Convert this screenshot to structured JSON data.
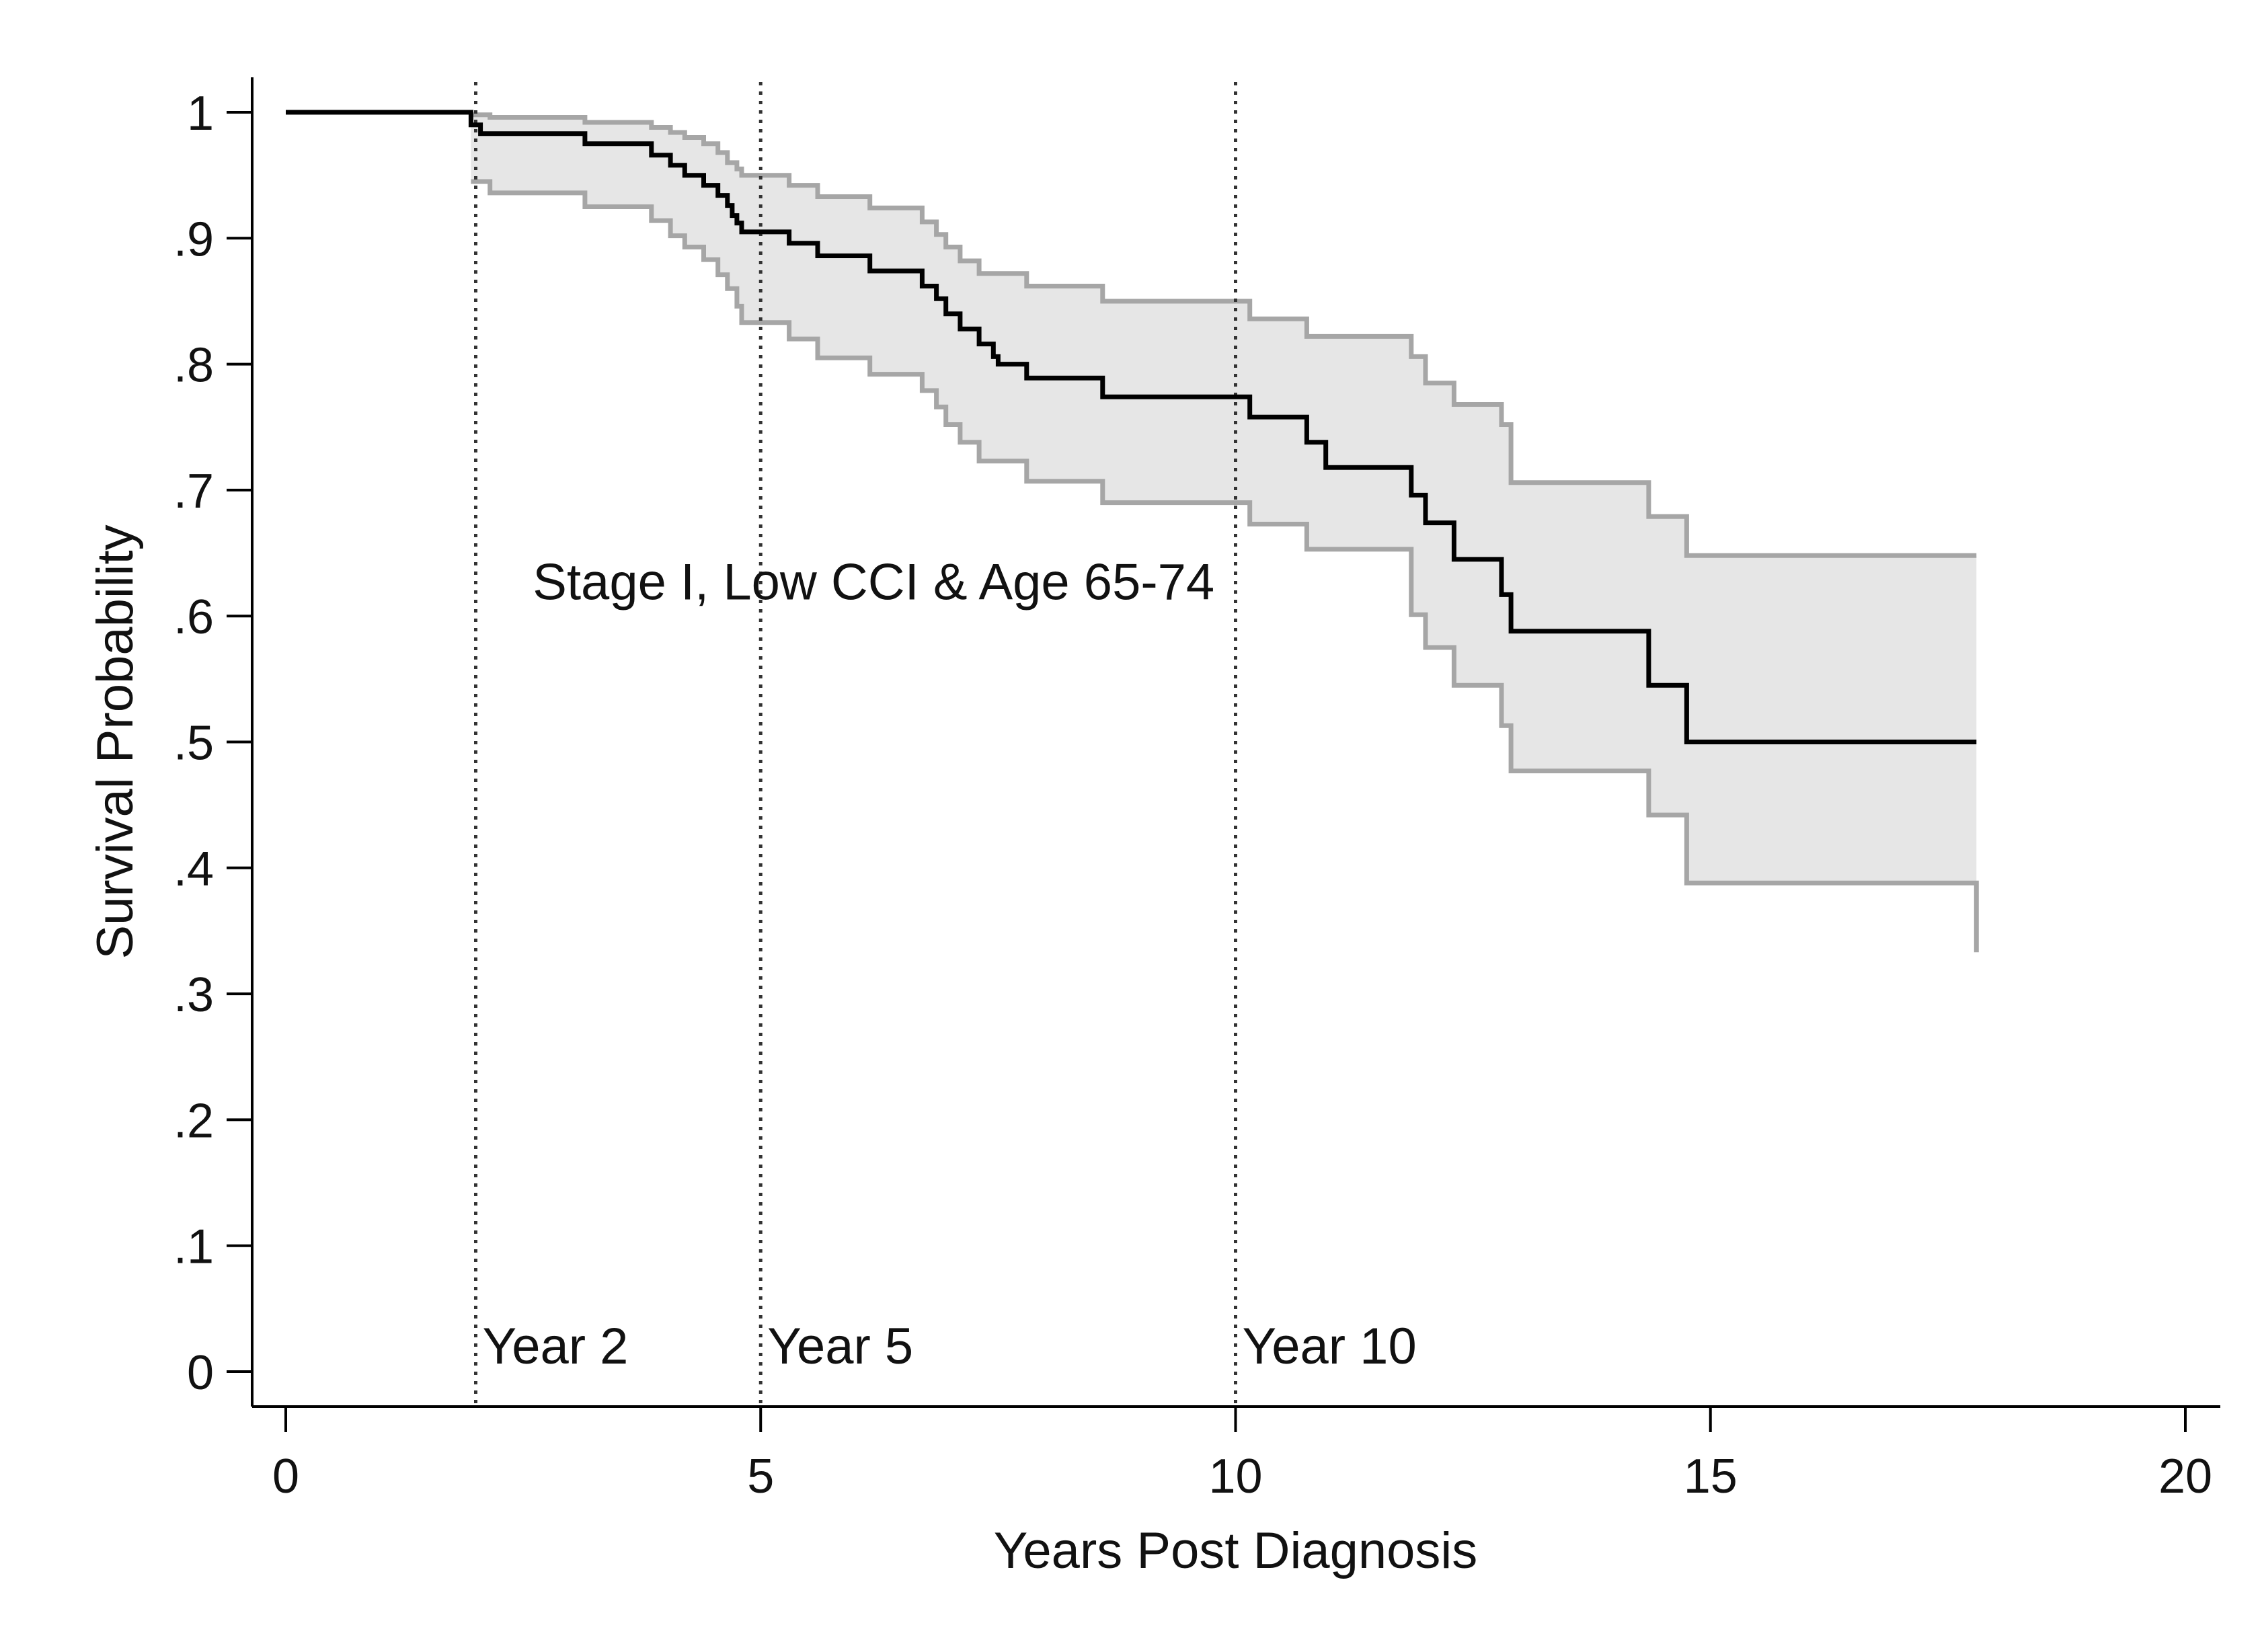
{
  "chart_data": {
    "type": "line",
    "subtype": "kaplan-meier step survival curve with confidence band",
    "title": "",
    "xlabel": "Years Post Diagnosis",
    "ylabel": "Survival Probability",
    "xlim": [
      0,
      20
    ],
    "ylim": [
      0,
      1
    ],
    "x_ticks": [
      0,
      5,
      10,
      15,
      20
    ],
    "x_tick_labels": [
      "0",
      "5",
      "10",
      "15",
      "20"
    ],
    "y_ticks": [
      0,
      0.1,
      0.2,
      0.3,
      0.4,
      0.5,
      0.6,
      0.7,
      0.8,
      0.9,
      1.0
    ],
    "y_tick_labels": [
      "0",
      ".1",
      ".2",
      ".3",
      ".4",
      ".5",
      ".6",
      ".7",
      ".8",
      ".9",
      "1"
    ],
    "grid": false,
    "annotation": {
      "text": "Stage I, Low CCI & Age 65-74",
      "x": 2.6,
      "y": 0.62
    },
    "reference_lines": [
      {
        "x": 2,
        "label": "Year 2"
      },
      {
        "x": 5,
        "label": "Year 5"
      },
      {
        "x": 10,
        "label": "Year 10"
      }
    ],
    "colors": {
      "estimate": "#000000",
      "ci_line": "#a6a6a6",
      "ci_fill": "#e6e6e6",
      "ref_line": "#333333"
    },
    "series": [
      {
        "role": "estimate",
        "step_x": [
          0,
          1.95,
          2.05,
          2.15,
          3.15,
          3.85,
          4.05,
          4.2,
          4.4,
          4.55,
          4.65,
          4.7,
          4.75,
          4.8,
          5.3,
          5.6,
          6.15,
          6.7,
          6.85,
          6.95,
          7.1,
          7.3,
          7.45,
          7.5,
          7.8,
          8.6,
          10.15,
          10.75,
          10.95,
          11.85,
          12.0,
          12.3,
          12.8,
          12.9,
          14.35,
          14.75,
          17.8
        ],
        "step_y": [
          1.0,
          0.99,
          0.983,
          0.983,
          0.975,
          0.966,
          0.958,
          0.95,
          0.942,
          0.934,
          0.926,
          0.918,
          0.912,
          0.905,
          0.896,
          0.886,
          0.874,
          0.862,
          0.852,
          0.84,
          0.828,
          0.816,
          0.806,
          0.8,
          0.789,
          0.774,
          0.758,
          0.738,
          0.718,
          0.696,
          0.674,
          0.645,
          0.617,
          0.588,
          0.545,
          0.5,
          0.5
        ]
      },
      {
        "role": "upper_ci",
        "step_x": [
          1.95,
          2.15,
          3.15,
          3.85,
          4.05,
          4.2,
          4.4,
          4.55,
          4.65,
          4.75,
          4.8,
          5.3,
          5.6,
          6.15,
          6.7,
          6.85,
          6.95,
          7.1,
          7.3,
          7.8,
          8.6,
          10.15,
          10.75,
          11.85,
          12.0,
          12.3,
          12.8,
          12.9,
          14.35,
          14.75,
          17.8
        ],
        "step_y": [
          0.998,
          0.996,
          0.992,
          0.988,
          0.984,
          0.98,
          0.975,
          0.968,
          0.96,
          0.955,
          0.95,
          0.942,
          0.933,
          0.924,
          0.913,
          0.903,
          0.893,
          0.882,
          0.872,
          0.862,
          0.85,
          0.836,
          0.822,
          0.806,
          0.785,
          0.768,
          0.752,
          0.706,
          0.679,
          0.648,
          0.648
        ]
      },
      {
        "role": "lower_ci",
        "step_x": [
          1.95,
          2.15,
          3.15,
          3.85,
          4.05,
          4.2,
          4.4,
          4.55,
          4.65,
          4.75,
          4.8,
          5.3,
          5.6,
          6.15,
          6.7,
          6.85,
          6.95,
          7.1,
          7.3,
          7.8,
          8.6,
          10.15,
          10.75,
          11.85,
          12.0,
          12.3,
          12.8,
          12.9,
          14.35,
          14.75,
          17.8
        ],
        "step_y": [
          0.945,
          0.936,
          0.925,
          0.914,
          0.902,
          0.893,
          0.883,
          0.871,
          0.86,
          0.846,
          0.833,
          0.82,
          0.805,
          0.792,
          0.779,
          0.766,
          0.752,
          0.738,
          0.723,
          0.707,
          0.69,
          0.673,
          0.653,
          0.601,
          0.575,
          0.545,
          0.513,
          0.477,
          0.442,
          0.388,
          0.333
        ]
      }
    ]
  }
}
